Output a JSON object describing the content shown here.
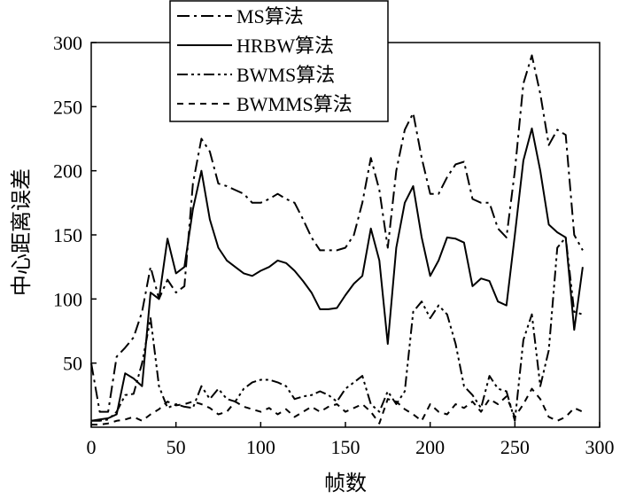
{
  "chart_data": {
    "type": "line",
    "title": "",
    "xlabel": "帧数",
    "ylabel": "中心距离误差",
    "xlim": [
      0,
      300
    ],
    "ylim": [
      0,
      300
    ],
    "xticks": [
      0,
      50,
      100,
      150,
      200,
      250,
      300
    ],
    "yticks": [
      50,
      100,
      150,
      200,
      250,
      300
    ],
    "grid": false,
    "legend_position": "top-left",
    "series": [
      {
        "name": "MS算法",
        "dash": "dash-dot",
        "points": [
          [
            0,
            50
          ],
          [
            5,
            12
          ],
          [
            10,
            12
          ],
          [
            15,
            55
          ],
          [
            20,
            62
          ],
          [
            25,
            70
          ],
          [
            30,
            90
          ],
          [
            35,
            125
          ],
          [
            40,
            100
          ],
          [
            45,
            115
          ],
          [
            50,
            105
          ],
          [
            55,
            110
          ],
          [
            60,
            190
          ],
          [
            65,
            225
          ],
          [
            70,
            215
          ],
          [
            75,
            190
          ],
          [
            80,
            188
          ],
          [
            85,
            185
          ],
          [
            90,
            182
          ],
          [
            95,
            175
          ],
          [
            100,
            175
          ],
          [
            105,
            178
          ],
          [
            110,
            182
          ],
          [
            115,
            178
          ],
          [
            120,
            175
          ],
          [
            125,
            162
          ],
          [
            130,
            148
          ],
          [
            135,
            138
          ],
          [
            140,
            138
          ],
          [
            145,
            138
          ],
          [
            150,
            140
          ],
          [
            155,
            150
          ],
          [
            160,
            175
          ],
          [
            165,
            210
          ],
          [
            170,
            185
          ],
          [
            175,
            140
          ],
          [
            180,
            200
          ],
          [
            185,
            232
          ],
          [
            190,
            245
          ],
          [
            195,
            210
          ],
          [
            200,
            182
          ],
          [
            205,
            182
          ],
          [
            210,
            195
          ],
          [
            215,
            205
          ],
          [
            220,
            207
          ],
          [
            225,
            178
          ],
          [
            230,
            175
          ],
          [
            235,
            175
          ],
          [
            240,
            155
          ],
          [
            245,
            148
          ],
          [
            250,
            200
          ],
          [
            255,
            268
          ],
          [
            260,
            290
          ],
          [
            265,
            260
          ],
          [
            270,
            220
          ],
          [
            275,
            232
          ],
          [
            280,
            228
          ],
          [
            285,
            150
          ],
          [
            290,
            138
          ]
        ]
      },
      {
        "name": "HRBW算法",
        "dash": "solid",
        "points": [
          [
            0,
            5
          ],
          [
            5,
            6
          ],
          [
            10,
            7
          ],
          [
            15,
            10
          ],
          [
            20,
            42
          ],
          [
            25,
            38
          ],
          [
            30,
            32
          ],
          [
            35,
            105
          ],
          [
            40,
            100
          ],
          [
            45,
            147
          ],
          [
            50,
            120
          ],
          [
            55,
            125
          ],
          [
            60,
            170
          ],
          [
            65,
            200
          ],
          [
            70,
            162
          ],
          [
            75,
            140
          ],
          [
            80,
            130
          ],
          [
            85,
            125
          ],
          [
            90,
            120
          ],
          [
            95,
            118
          ],
          [
            100,
            122
          ],
          [
            105,
            125
          ],
          [
            110,
            130
          ],
          [
            115,
            128
          ],
          [
            120,
            122
          ],
          [
            125,
            114
          ],
          [
            130,
            105
          ],
          [
            135,
            92
          ],
          [
            140,
            92
          ],
          [
            145,
            93
          ],
          [
            150,
            103
          ],
          [
            155,
            112
          ],
          [
            160,
            118
          ],
          [
            165,
            155
          ],
          [
            170,
            130
          ],
          [
            175,
            65
          ],
          [
            180,
            140
          ],
          [
            185,
            175
          ],
          [
            190,
            188
          ],
          [
            195,
            148
          ],
          [
            200,
            118
          ],
          [
            205,
            130
          ],
          [
            210,
            148
          ],
          [
            215,
            147
          ],
          [
            220,
            144
          ],
          [
            225,
            110
          ],
          [
            230,
            116
          ],
          [
            235,
            114
          ],
          [
            240,
            98
          ],
          [
            245,
            95
          ],
          [
            250,
            150
          ],
          [
            255,
            208
          ],
          [
            260,
            233
          ],
          [
            265,
            200
          ],
          [
            270,
            158
          ],
          [
            275,
            152
          ],
          [
            280,
            148
          ],
          [
            285,
            76
          ],
          [
            290,
            125
          ]
        ]
      },
      {
        "name": "BWMS算法",
        "dash": "dash-dot-dot",
        "points": [
          [
            0,
            5
          ],
          [
            5,
            5
          ],
          [
            10,
            6
          ],
          [
            15,
            12
          ],
          [
            20,
            25
          ],
          [
            25,
            26
          ],
          [
            30,
            50
          ],
          [
            35,
            85
          ],
          [
            40,
            32
          ],
          [
            45,
            15
          ],
          [
            50,
            18
          ],
          [
            55,
            16
          ],
          [
            60,
            15
          ],
          [
            65,
            32
          ],
          [
            70,
            22
          ],
          [
            75,
            30
          ],
          [
            80,
            22
          ],
          [
            85,
            20
          ],
          [
            90,
            30
          ],
          [
            95,
            35
          ],
          [
            100,
            37
          ],
          [
            105,
            37
          ],
          [
            110,
            35
          ],
          [
            115,
            32
          ],
          [
            120,
            22
          ],
          [
            125,
            24
          ],
          [
            130,
            25
          ],
          [
            135,
            28
          ],
          [
            140,
            25
          ],
          [
            145,
            20
          ],
          [
            150,
            30
          ],
          [
            155,
            35
          ],
          [
            160,
            40
          ],
          [
            165,
            18
          ],
          [
            170,
            12
          ],
          [
            175,
            28
          ],
          [
            180,
            18
          ],
          [
            185,
            28
          ],
          [
            190,
            90
          ],
          [
            195,
            98
          ],
          [
            200,
            85
          ],
          [
            205,
            95
          ],
          [
            210,
            88
          ],
          [
            215,
            65
          ],
          [
            220,
            32
          ],
          [
            225,
            25
          ],
          [
            230,
            15
          ],
          [
            235,
            40
          ],
          [
            240,
            30
          ],
          [
            245,
            28
          ],
          [
            250,
            5
          ],
          [
            255,
            68
          ],
          [
            260,
            88
          ],
          [
            265,
            32
          ],
          [
            270,
            60
          ],
          [
            275,
            140
          ],
          [
            280,
            148
          ],
          [
            285,
            90
          ],
          [
            290,
            88
          ]
        ]
      },
      {
        "name": "BWMMS算法",
        "dash": "dashed",
        "points": [
          [
            0,
            2
          ],
          [
            5,
            2
          ],
          [
            10,
            3
          ],
          [
            15,
            5
          ],
          [
            20,
            6
          ],
          [
            25,
            8
          ],
          [
            30,
            5
          ],
          [
            35,
            10
          ],
          [
            40,
            14
          ],
          [
            45,
            20
          ],
          [
            50,
            17
          ],
          [
            55,
            18
          ],
          [
            60,
            20
          ],
          [
            65,
            18
          ],
          [
            70,
            15
          ],
          [
            75,
            10
          ],
          [
            80,
            12
          ],
          [
            85,
            20
          ],
          [
            90,
            16
          ],
          [
            95,
            14
          ],
          [
            100,
            12
          ],
          [
            105,
            15
          ],
          [
            110,
            10
          ],
          [
            115,
            14
          ],
          [
            120,
            8
          ],
          [
            125,
            12
          ],
          [
            130,
            16
          ],
          [
            135,
            12
          ],
          [
            140,
            16
          ],
          [
            145,
            18
          ],
          [
            150,
            12
          ],
          [
            155,
            15
          ],
          [
            160,
            18
          ],
          [
            165,
            12
          ],
          [
            170,
            3
          ],
          [
            175,
            22
          ],
          [
            180,
            20
          ],
          [
            185,
            14
          ],
          [
            190,
            10
          ],
          [
            195,
            5
          ],
          [
            200,
            18
          ],
          [
            205,
            12
          ],
          [
            210,
            10
          ],
          [
            215,
            18
          ],
          [
            220,
            15
          ],
          [
            225,
            20
          ],
          [
            230,
            12
          ],
          [
            235,
            22
          ],
          [
            240,
            18
          ],
          [
            245,
            24
          ],
          [
            250,
            8
          ],
          [
            255,
            18
          ],
          [
            260,
            30
          ],
          [
            265,
            22
          ],
          [
            270,
            8
          ],
          [
            275,
            5
          ],
          [
            280,
            8
          ],
          [
            285,
            15
          ],
          [
            290,
            12
          ]
        ]
      }
    ]
  }
}
